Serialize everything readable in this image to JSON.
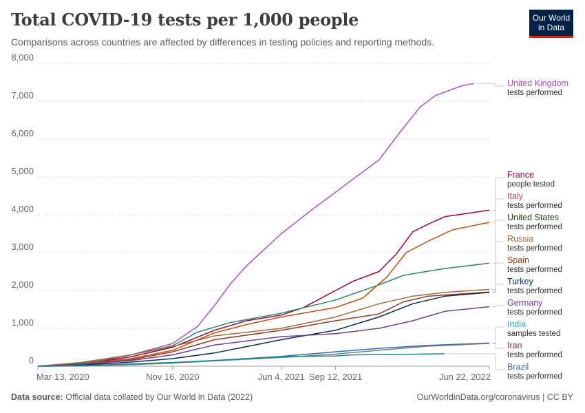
{
  "header": {
    "title": "Total COVID-19 tests per 1,000 people",
    "subtitle": "Comparisons across countries are affected by differences in testing policies and reporting methods.",
    "logo_line1": "Our World",
    "logo_line2": "in Data"
  },
  "footer": {
    "source_label": "Data source:",
    "source_text": "Official data collated by Our World in Data (2022)",
    "right_text": "OurWorldinData.org/coronavirus | CC BY"
  },
  "chart_data": {
    "type": "line",
    "title": "Total COVID-19 tests per 1,000 people",
    "xlabel": "",
    "ylabel": "",
    "ylim": [
      0,
      8000
    ],
    "yticks": [
      0,
      1000,
      2000,
      3000,
      4000,
      5000,
      6000,
      7000,
      8000
    ],
    "ytick_labels": [
      "0",
      "1,000",
      "2,000",
      "3,000",
      "4,000",
      "5,000",
      "6,000",
      "7,000",
      "8,000"
    ],
    "xlim": [
      "2020-03-13",
      "2022-06-22"
    ],
    "xticks": [
      "2020-03-13",
      "2020-11-16",
      "2021-06-04",
      "2021-09-12",
      "2022-06-22"
    ],
    "xtick_labels": [
      "Mar 13, 2020",
      "Nov 16, 2020",
      "Jun 4, 2021",
      "Sep 12, 2021",
      "Jun 22, 2022"
    ],
    "grid": "horizontal-dashed",
    "legend": "right",
    "series": [
      {
        "name": "United Kingdom",
        "sub": "tests performed",
        "color": "#a652ba",
        "points": [
          [
            "2020-03-13",
            0
          ],
          [
            "2020-05-01",
            30
          ],
          [
            "2020-07-01",
            120
          ],
          [
            "2020-09-01",
            300
          ],
          [
            "2020-11-16",
            600
          ],
          [
            "2021-01-01",
            1050
          ],
          [
            "2021-02-01",
            1600
          ],
          [
            "2021-03-01",
            2150
          ],
          [
            "2021-04-01",
            2650
          ],
          [
            "2021-06-04",
            3500
          ],
          [
            "2021-08-01",
            4150
          ],
          [
            "2021-10-01",
            4800
          ],
          [
            "2021-12-01",
            5450
          ],
          [
            "2022-01-15",
            6300
          ],
          [
            "2022-02-15",
            6850
          ],
          [
            "2022-03-15",
            7150
          ],
          [
            "2022-05-01",
            7400
          ],
          [
            "2022-05-25",
            7470
          ]
        ]
      },
      {
        "name": "France",
        "sub": "people tested",
        "color": "#970046",
        "points": [
          [
            "2020-03-13",
            0
          ],
          [
            "2020-06-01",
            50
          ],
          [
            "2020-09-01",
            250
          ],
          [
            "2020-11-16",
            500
          ],
          [
            "2021-02-01",
            950
          ],
          [
            "2021-04-01",
            1200
          ],
          [
            "2021-06-04",
            1350
          ],
          [
            "2021-07-15",
            1550
          ],
          [
            "2021-09-12",
            2000
          ],
          [
            "2021-10-15",
            2250
          ],
          [
            "2021-12-01",
            2500
          ],
          [
            "2022-01-01",
            2950
          ],
          [
            "2022-02-01",
            3550
          ],
          [
            "2022-03-01",
            3750
          ],
          [
            "2022-04-01",
            3950
          ],
          [
            "2022-06-22",
            4120
          ]
        ]
      },
      {
        "name": "Italy",
        "sub": "tests performed",
        "color": "#c15065",
        "line_color": "#c24f00",
        "points": [
          [
            "2020-03-13",
            0
          ],
          [
            "2020-06-01",
            60
          ],
          [
            "2020-09-01",
            200
          ],
          [
            "2020-11-16",
            420
          ],
          [
            "2021-02-01",
            880
          ],
          [
            "2021-04-01",
            1100
          ],
          [
            "2021-06-04",
            1300
          ],
          [
            "2021-09-12",
            1550
          ],
          [
            "2021-11-01",
            1800
          ],
          [
            "2021-12-15",
            2350
          ],
          [
            "2022-01-20",
            3000
          ],
          [
            "2022-03-01",
            3300
          ],
          [
            "2022-04-15",
            3600
          ],
          [
            "2022-06-22",
            3800
          ]
        ]
      },
      {
        "name": "United States",
        "sub": "tests performed",
        "color": "#18470f",
        "line_color": "#2c8465",
        "points": [
          [
            "2020-03-13",
            0
          ],
          [
            "2020-06-01",
            80
          ],
          [
            "2020-09-01",
            300
          ],
          [
            "2020-11-16",
            540
          ],
          [
            "2021-01-01",
            900
          ],
          [
            "2021-03-01",
            1150
          ],
          [
            "2021-06-04",
            1400
          ],
          [
            "2021-09-12",
            1750
          ],
          [
            "2021-12-01",
            2150
          ],
          [
            "2022-01-15",
            2400
          ],
          [
            "2022-04-01",
            2580
          ],
          [
            "2022-06-22",
            2720
          ]
        ]
      },
      {
        "name": "Russia",
        "sub": "tests performed",
        "color": "#996d39",
        "points": [
          [
            "2020-03-13",
            0
          ],
          [
            "2020-06-01",
            100
          ],
          [
            "2020-09-01",
            300
          ],
          [
            "2020-11-16",
            520
          ],
          [
            "2021-02-01",
            800
          ],
          [
            "2021-06-04",
            1000
          ],
          [
            "2021-09-12",
            1300
          ],
          [
            "2021-12-01",
            1650
          ],
          [
            "2022-02-01",
            1850
          ],
          [
            "2022-04-01",
            1950
          ],
          [
            "2022-06-22",
            2030
          ]
        ]
      },
      {
        "name": "Spain",
        "sub": "tests performed",
        "color": "#b13507",
        "line_color": "#9a3424",
        "points": [
          [
            "2020-03-13",
            0
          ],
          [
            "2020-06-01",
            40
          ],
          [
            "2020-09-01",
            170
          ],
          [
            "2020-11-16",
            380
          ],
          [
            "2021-02-01",
            700
          ],
          [
            "2021-06-04",
            950
          ],
          [
            "2021-09-12",
            1200
          ],
          [
            "2021-12-01",
            1380
          ],
          [
            "2022-01-15",
            1700
          ],
          [
            "2022-03-01",
            1850
          ],
          [
            "2022-06-22",
            1960
          ]
        ]
      },
      {
        "name": "Turkey",
        "sub": "tests performed",
        "color": "#00295b",
        "line_color": "#0a2a4e",
        "points": [
          [
            "2020-03-13",
            0
          ],
          [
            "2020-06-01",
            30
          ],
          [
            "2020-09-01",
            110
          ],
          [
            "2020-11-16",
            200
          ],
          [
            "2021-02-01",
            350
          ],
          [
            "2021-06-04",
            700
          ],
          [
            "2021-09-12",
            950
          ],
          [
            "2021-12-01",
            1300
          ],
          [
            "2022-02-01",
            1650
          ],
          [
            "2022-04-01",
            1850
          ],
          [
            "2022-06-22",
            1950
          ]
        ]
      },
      {
        "name": "Germany",
        "sub": "tests performed",
        "color": "#6d3e91",
        "points": [
          [
            "2020-03-13",
            0
          ],
          [
            "2020-06-01",
            50
          ],
          [
            "2020-09-01",
            150
          ],
          [
            "2020-11-16",
            300
          ],
          [
            "2021-02-01",
            560
          ],
          [
            "2021-06-04",
            780
          ],
          [
            "2021-09-12",
            860
          ],
          [
            "2021-12-01",
            1000
          ],
          [
            "2022-02-01",
            1200
          ],
          [
            "2022-04-01",
            1450
          ],
          [
            "2022-06-22",
            1570
          ]
        ]
      },
      {
        "name": "India",
        "sub": "samples tested",
        "color": "#38aaba",
        "line_color": "#286bbb",
        "points": [
          [
            "2020-03-13",
            0
          ],
          [
            "2020-06-01",
            5
          ],
          [
            "2020-09-01",
            40
          ],
          [
            "2020-11-16",
            90
          ],
          [
            "2021-02-01",
            150
          ],
          [
            "2021-06-04",
            260
          ],
          [
            "2021-09-12",
            380
          ],
          [
            "2021-12-01",
            470
          ],
          [
            "2022-03-01",
            550
          ],
          [
            "2022-06-22",
            610
          ]
        ]
      },
      {
        "name": "Iran",
        "sub": "tests performed",
        "color": "#883039",
        "line_color": "#7a7a7a",
        "points": [
          [
            "2020-03-13",
            0
          ],
          [
            "2020-06-01",
            10
          ],
          [
            "2020-09-01",
            40
          ],
          [
            "2020-11-16",
            80
          ],
          [
            "2021-02-01",
            140
          ],
          [
            "2021-06-04",
            230
          ],
          [
            "2021-09-12",
            320
          ],
          [
            "2021-12-01",
            420
          ],
          [
            "2022-03-01",
            530
          ],
          [
            "2022-06-22",
            600
          ]
        ]
      },
      {
        "name": "Brazil",
        "sub": "tests performed",
        "color": "#4c6a9c",
        "line_color": "#0f8f8f",
        "points": [
          [
            "2020-03-13",
            0
          ],
          [
            "2020-06-01",
            15
          ],
          [
            "2020-09-01",
            60
          ],
          [
            "2020-11-16",
            100
          ],
          [
            "2021-02-01",
            150
          ],
          [
            "2021-06-04",
            250
          ],
          [
            "2021-09-12",
            270
          ],
          [
            "2021-10-15",
            300
          ],
          [
            "2022-01-01",
            310
          ],
          [
            "2022-04-01",
            330
          ]
        ]
      }
    ]
  }
}
